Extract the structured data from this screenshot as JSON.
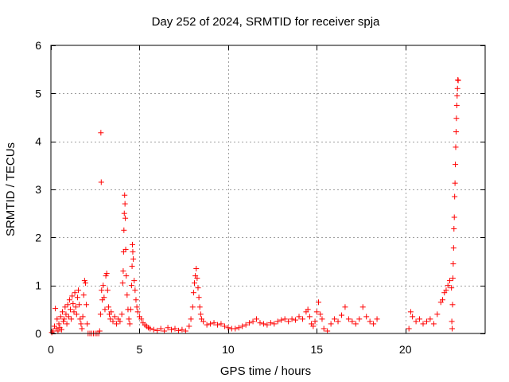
{
  "chart_data": {
    "type": "scatter",
    "title": "Day 252 of 2024, SRMTID for receiver spja",
    "xlabel": "GPS time / hours",
    "ylabel": "SRMTID / TECUs",
    "xlim": [
      0,
      24.5
    ],
    "ylim": [
      0,
      6
    ],
    "xticks": [
      0,
      5,
      10,
      15,
      20
    ],
    "yticks": [
      0,
      1,
      2,
      3,
      4,
      5,
      6
    ],
    "grid": true,
    "marker": "+",
    "colors": {
      "series": "#ff0000",
      "grid": "#a0a0a0",
      "axis": "#000000"
    },
    "series": [
      {
        "name": "SRMTID",
        "points": [
          [
            0.05,
            0.02
          ],
          [
            0.12,
            0.05
          ],
          [
            0.2,
            0.15
          ],
          [
            0.25,
            0.52
          ],
          [
            0.3,
            0.1
          ],
          [
            0.35,
            0.3
          ],
          [
            0.4,
            0.05
          ],
          [
            0.45,
            0.2
          ],
          [
            0.5,
            0.12
          ],
          [
            0.55,
            0.35
          ],
          [
            0.6,
            0.08
          ],
          [
            0.65,
            0.45
          ],
          [
            0.7,
            0.25
          ],
          [
            0.75,
            0.3
          ],
          [
            0.8,
            0.55
          ],
          [
            0.85,
            0.4
          ],
          [
            0.9,
            0.2
          ],
          [
            0.95,
            0.6
          ],
          [
            1.0,
            0.35
          ],
          [
            1.05,
            0.7
          ],
          [
            1.1,
            0.5
          ],
          [
            1.15,
            0.3
          ],
          [
            1.2,
            0.78
          ],
          [
            1.25,
            0.62
          ],
          [
            1.3,
            0.45
          ],
          [
            1.35,
            0.85
          ],
          [
            1.4,
            0.55
          ],
          [
            1.45,
            0.4
          ],
          [
            1.5,
            0.75
          ],
          [
            1.55,
            0.9
          ],
          [
            1.6,
            0.6
          ],
          [
            1.65,
            0.3
          ],
          [
            1.7,
            0.2
          ],
          [
            1.75,
            0.1
          ],
          [
            1.8,
            0.35
          ],
          [
            1.85,
            0.8
          ],
          [
            1.9,
            1.1
          ],
          [
            1.95,
            1.05
          ],
          [
            2.0,
            0.6
          ],
          [
            2.05,
            0.2
          ],
          [
            2.1,
            0.0
          ],
          [
            2.2,
            0.0
          ],
          [
            2.3,
            0.0
          ],
          [
            2.4,
            0.0
          ],
          [
            2.5,
            0.0
          ],
          [
            2.6,
            0.0
          ],
          [
            2.7,
            0.0
          ],
          [
            2.75,
            0.05
          ],
          [
            2.8,
            0.4
          ],
          [
            2.82,
            4.18
          ],
          [
            2.84,
            3.15
          ],
          [
            2.86,
            0.9
          ],
          [
            2.9,
            0.7
          ],
          [
            2.95,
            1.0
          ],
          [
            3.0,
            0.75
          ],
          [
            3.05,
            0.5
          ],
          [
            3.1,
            1.2
          ],
          [
            3.15,
            1.25
          ],
          [
            3.2,
            0.9
          ],
          [
            3.25,
            0.55
          ],
          [
            3.3,
            0.4
          ],
          [
            3.35,
            0.3
          ],
          [
            3.4,
            0.45
          ],
          [
            3.5,
            0.25
          ],
          [
            3.6,
            0.35
          ],
          [
            3.7,
            0.2
          ],
          [
            3.8,
            0.3
          ],
          [
            3.9,
            0.25
          ],
          [
            4.0,
            0.4
          ],
          [
            4.05,
            1.05
          ],
          [
            4.08,
            1.3
          ],
          [
            4.1,
            1.7
          ],
          [
            4.12,
            2.15
          ],
          [
            4.14,
            2.5
          ],
          [
            4.16,
            2.88
          ],
          [
            4.18,
            2.7
          ],
          [
            4.2,
            2.4
          ],
          [
            4.22,
            1.75
          ],
          [
            4.25,
            1.2
          ],
          [
            4.3,
            0.8
          ],
          [
            4.35,
            0.5
          ],
          [
            4.4,
            0.3
          ],
          [
            4.45,
            0.2
          ],
          [
            4.5,
            0.5
          ],
          [
            4.55,
            1.0
          ],
          [
            4.58,
            1.4
          ],
          [
            4.6,
            1.85
          ],
          [
            4.62,
            1.7
          ],
          [
            4.65,
            1.55
          ],
          [
            4.7,
            1.1
          ],
          [
            4.75,
            0.9
          ],
          [
            4.8,
            0.7
          ],
          [
            4.85,
            0.55
          ],
          [
            4.9,
            0.45
          ],
          [
            5.0,
            0.35
          ],
          [
            5.1,
            0.3
          ],
          [
            5.2,
            0.22
          ],
          [
            5.3,
            0.18
          ],
          [
            5.4,
            0.15
          ],
          [
            5.5,
            0.12
          ],
          [
            5.6,
            0.1
          ],
          [
            5.8,
            0.08
          ],
          [
            6.0,
            0.06
          ],
          [
            6.2,
            0.1
          ],
          [
            6.4,
            0.05
          ],
          [
            6.6,
            0.12
          ],
          [
            6.8,
            0.08
          ],
          [
            7.0,
            0.1
          ],
          [
            7.2,
            0.06
          ],
          [
            7.4,
            0.08
          ],
          [
            7.6,
            0.05
          ],
          [
            7.8,
            0.15
          ],
          [
            7.9,
            0.3
          ],
          [
            8.0,
            0.55
          ],
          [
            8.05,
            0.85
          ],
          [
            8.1,
            1.05
          ],
          [
            8.15,
            1.2
          ],
          [
            8.2,
            1.35
          ],
          [
            8.25,
            1.15
          ],
          [
            8.3,
            0.95
          ],
          [
            8.35,
            0.75
          ],
          [
            8.4,
            0.55
          ],
          [
            8.45,
            0.4
          ],
          [
            8.5,
            0.3
          ],
          [
            8.6,
            0.25
          ],
          [
            8.8,
            0.18
          ],
          [
            9.0,
            0.2
          ],
          [
            9.2,
            0.22
          ],
          [
            9.4,
            0.18
          ],
          [
            9.6,
            0.2
          ],
          [
            9.8,
            0.15
          ],
          [
            10.0,
            0.12
          ],
          [
            10.2,
            0.1
          ],
          [
            10.4,
            0.1
          ],
          [
            10.6,
            0.12
          ],
          [
            10.8,
            0.15
          ],
          [
            11.0,
            0.18
          ],
          [
            11.2,
            0.22
          ],
          [
            11.4,
            0.25
          ],
          [
            11.6,
            0.3
          ],
          [
            11.8,
            0.22
          ],
          [
            12.0,
            0.2
          ],
          [
            12.2,
            0.18
          ],
          [
            12.4,
            0.22
          ],
          [
            12.6,
            0.2
          ],
          [
            12.8,
            0.25
          ],
          [
            13.0,
            0.28
          ],
          [
            13.2,
            0.3
          ],
          [
            13.4,
            0.25
          ],
          [
            13.6,
            0.3
          ],
          [
            13.8,
            0.28
          ],
          [
            14.0,
            0.35
          ],
          [
            14.2,
            0.3
          ],
          [
            14.4,
            0.45
          ],
          [
            14.5,
            0.5
          ],
          [
            14.6,
            0.35
          ],
          [
            14.7,
            0.2
          ],
          [
            14.8,
            0.15
          ],
          [
            14.9,
            0.25
          ],
          [
            15.0,
            0.45
          ],
          [
            15.1,
            0.65
          ],
          [
            15.2,
            0.4
          ],
          [
            15.3,
            0.3
          ],
          [
            15.4,
            0.1
          ],
          [
            15.6,
            0.05
          ],
          [
            15.8,
            0.2
          ],
          [
            16.0,
            0.3
          ],
          [
            16.2,
            0.25
          ],
          [
            16.4,
            0.38
          ],
          [
            16.6,
            0.55
          ],
          [
            16.8,
            0.3
          ],
          [
            17.0,
            0.25
          ],
          [
            17.2,
            0.2
          ],
          [
            17.4,
            0.3
          ],
          [
            17.6,
            0.55
          ],
          [
            17.8,
            0.35
          ],
          [
            18.0,
            0.25
          ],
          [
            18.2,
            0.2
          ],
          [
            18.4,
            0.3
          ],
          [
            20.2,
            0.1
          ],
          [
            20.3,
            0.45
          ],
          [
            20.4,
            0.35
          ],
          [
            20.6,
            0.25
          ],
          [
            20.8,
            0.3
          ],
          [
            21.0,
            0.2
          ],
          [
            21.2,
            0.25
          ],
          [
            21.4,
            0.3
          ],
          [
            21.6,
            0.2
          ],
          [
            21.8,
            0.4
          ],
          [
            22.0,
            0.65
          ],
          [
            22.1,
            0.7
          ],
          [
            22.2,
            0.85
          ],
          [
            22.3,
            0.9
          ],
          [
            22.4,
            1.0
          ],
          [
            22.5,
            1.1
          ],
          [
            22.6,
            0.95
          ],
          [
            22.62,
            0.25
          ],
          [
            22.64,
            0.1
          ],
          [
            22.66,
            0.6
          ],
          [
            22.68,
            1.15
          ],
          [
            22.7,
            1.45
          ],
          [
            22.72,
            1.78
          ],
          [
            22.74,
            2.18
          ],
          [
            22.76,
            2.42
          ],
          [
            22.78,
            2.85
          ],
          [
            22.8,
            3.13
          ],
          [
            22.82,
            3.52
          ],
          [
            22.84,
            3.88
          ],
          [
            22.86,
            4.2
          ],
          [
            22.88,
            4.48
          ],
          [
            22.9,
            4.75
          ],
          [
            22.92,
            4.95
          ],
          [
            22.94,
            5.1
          ],
          [
            22.96,
            5.28
          ],
          [
            22.98,
            5.27
          ]
        ]
      }
    ]
  }
}
